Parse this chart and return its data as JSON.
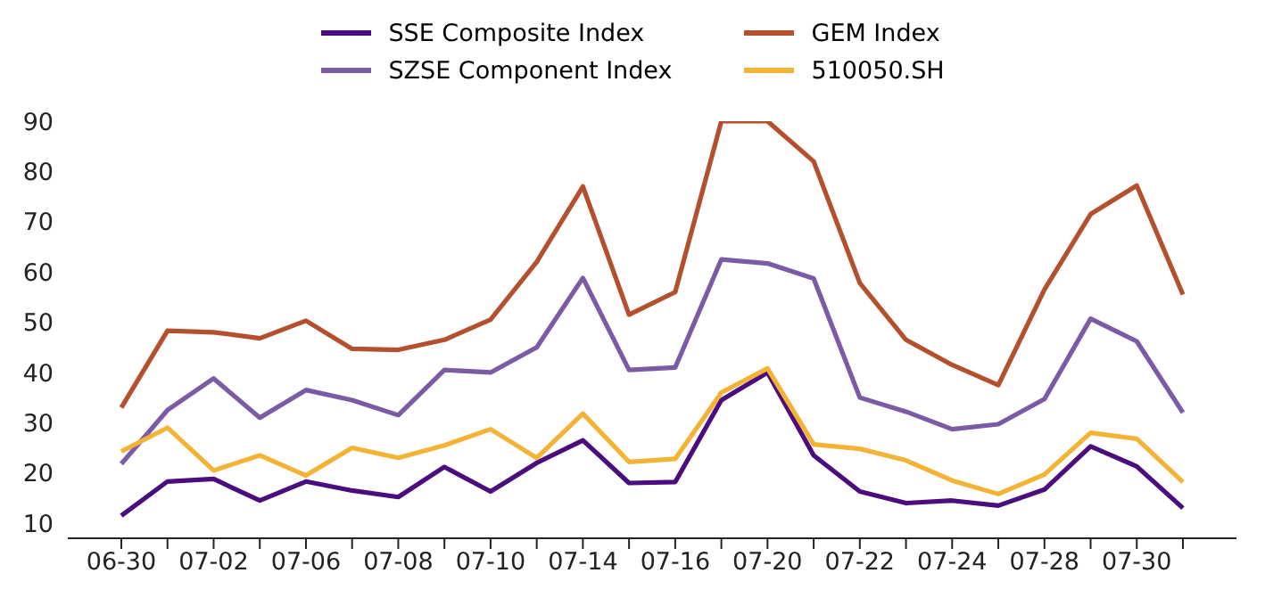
{
  "chart_data": {
    "type": "line",
    "categories": [
      "06-30",
      null,
      "07-02",
      null,
      "07-06",
      null,
      "07-08",
      null,
      "07-10",
      null,
      "07-14",
      null,
      "07-16",
      null,
      "07-20",
      null,
      "07-22",
      null,
      "07-24",
      null,
      "07-28",
      null,
      "07-30",
      null
    ],
    "series": [
      {
        "name": "SSE Composite Index",
        "color": "#4b0c7e",
        "values": [
          11.5,
          18.3,
          18.8,
          14.5,
          18.3,
          16.5,
          15.2,
          21.2,
          16.3,
          22,
          26.5,
          18,
          18.2,
          34.5,
          40,
          23.5,
          16.3,
          14,
          14.5,
          13.5,
          16.7,
          25.3,
          21.3,
          13
        ]
      },
      {
        "name": "SZSE Component Index",
        "color": "#7b5aa6",
        "values": [
          21.8,
          32.5,
          38.8,
          31,
          36.5,
          34.5,
          31.5,
          40.5,
          40,
          45,
          58.8,
          40.5,
          41,
          62.5,
          61.7,
          58.7,
          35,
          32.2,
          28.7,
          29.7,
          34.7,
          50.7,
          46.2,
          32
        ]
      },
      {
        "name": "GEM Index",
        "color": "#b5502e",
        "values": [
          33,
          48.3,
          48,
          46.8,
          50.3,
          44.7,
          44.5,
          46.5,
          50.5,
          62,
          77,
          51.5,
          56,
          90,
          90,
          82,
          57.8,
          46.5,
          41.5,
          37.5,
          56.5,
          71.5,
          77.2,
          55.5
        ]
      },
      {
        "name": "510050.SH",
        "color": "#f5b335",
        "values": [
          24.3,
          29,
          20.5,
          23.5,
          19.5,
          25,
          23,
          25.5,
          28.7,
          23,
          31.8,
          22.2,
          22.8,
          36,
          40.8,
          25.7,
          24.8,
          22.5,
          18.5,
          15.8,
          19.7,
          28,
          26.8,
          18.2
        ]
      }
    ],
    "ylim": [
      7,
      90
    ],
    "yticks": [
      10,
      20,
      30,
      40,
      50,
      60,
      70,
      80,
      90
    ],
    "grid": false,
    "legend": "top",
    "marker": "none",
    "line_style": "solid"
  }
}
